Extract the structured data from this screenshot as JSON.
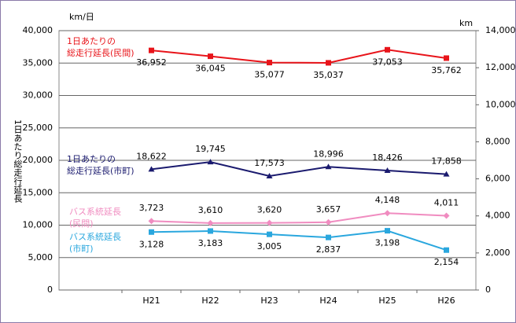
{
  "chart_data": {
    "type": "line",
    "ylabel_unit": "km/日",
    "ylabel": "1日あたり総走行延長",
    "y2label_unit": "km",
    "categories": [
      "H21",
      "H22",
      "H23",
      "H24",
      "H25",
      "H26"
    ],
    "ylim": [
      0,
      40000
    ],
    "yticks": [
      0,
      {
        "value": 5000,
        "label": "5,000"
      },
      {
        "value": 10000,
        "label": "10,000"
      },
      {
        "value": 15000,
        "label": "15,000"
      },
      {
        "value": 20000,
        "label": "20,000"
      },
      {
        "value": 25000,
        "label": "25,000"
      },
      {
        "value": 30000,
        "label": "30,000"
      },
      {
        "value": 35000,
        "label": "35,000"
      },
      {
        "value": 40000,
        "label": "40,000"
      }
    ],
    "y2lim": [
      0,
      14000
    ],
    "y2ticks": [
      0,
      {
        "value": 2000,
        "label": "2,000"
      },
      {
        "value": 4000,
        "label": "4,000"
      },
      {
        "value": 6000,
        "label": "6,000"
      },
      {
        "value": 8000,
        "label": "8,000"
      },
      {
        "value": 10000,
        "label": "10,000"
      },
      {
        "value": 12000,
        "label": "12,000"
      },
      {
        "value": 14000,
        "label": "14,000"
      }
    ],
    "grid": true,
    "series": [
      {
        "name": "1日あたりの\n総走行延長(民間)",
        "color": "#e8141a",
        "marker": "square",
        "axis": "y",
        "values": [
          36952,
          36045,
          35077,
          35037,
          37053,
          35762
        ],
        "value_labels": [
          "36,952",
          "36,045",
          "35,077",
          "35,037",
          "37,053",
          "35,762"
        ],
        "label_position": "below"
      },
      {
        "name": "1日あたりの\n総走行延長(市町)",
        "color": "#1a1a6e",
        "marker": "triangle",
        "axis": "y",
        "values": [
          18622,
          19745,
          17573,
          18996,
          18426,
          17858
        ],
        "value_labels": [
          "18,622",
          "19,745",
          "17,573",
          "18,996",
          "18,426",
          "17,858"
        ],
        "label_position": "above"
      },
      {
        "name": "バス系統延長\n(民間)",
        "color": "#f08cc0",
        "marker": "diamond",
        "axis": "y2",
        "values": [
          3723,
          3610,
          3620,
          3657,
          4148,
          4011
        ],
        "value_labels": [
          "3,723",
          "3,610",
          "3,620",
          "3,657",
          "4,148",
          "4,011"
        ],
        "label_position": "above"
      },
      {
        "name": "バス系統延長\n(市町)",
        "color": "#2aa7de",
        "marker": "square",
        "axis": "y2",
        "values": [
          3128,
          3183,
          3005,
          2837,
          3198,
          2154
        ],
        "value_labels": [
          "3,128",
          "3,183",
          "3,005",
          "2,837",
          "3,198",
          "2,154"
        ],
        "label_position": "below"
      }
    ]
  }
}
